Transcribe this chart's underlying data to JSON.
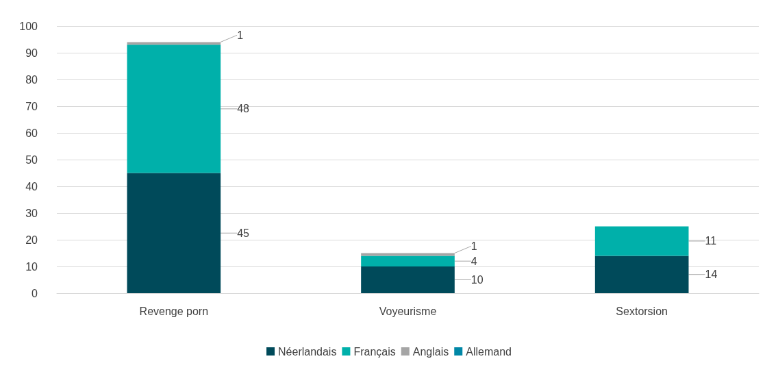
{
  "chart_data": {
    "type": "bar",
    "stacked": true,
    "categories": [
      "Revenge porn",
      "Voyeurisme",
      "Sextorsion"
    ],
    "series": [
      {
        "name": "Néerlandais",
        "color": "#004a5a",
        "values": [
          45,
          10,
          14
        ]
      },
      {
        "name": "Français",
        "color": "#00b0aa",
        "values": [
          48,
          4,
          11
        ]
      },
      {
        "name": "Anglais",
        "color": "#a5a5a5",
        "values": [
          1,
          1,
          null
        ]
      },
      {
        "name": "Allemand",
        "color": "#0087a6",
        "values": [
          null,
          null,
          null
        ]
      }
    ],
    "ylim": [
      0,
      100
    ],
    "yticks": [
      0,
      10,
      20,
      30,
      40,
      50,
      60,
      70,
      80,
      90,
      100
    ],
    "grid": "y",
    "legend": "bottom",
    "data_labels": true
  }
}
